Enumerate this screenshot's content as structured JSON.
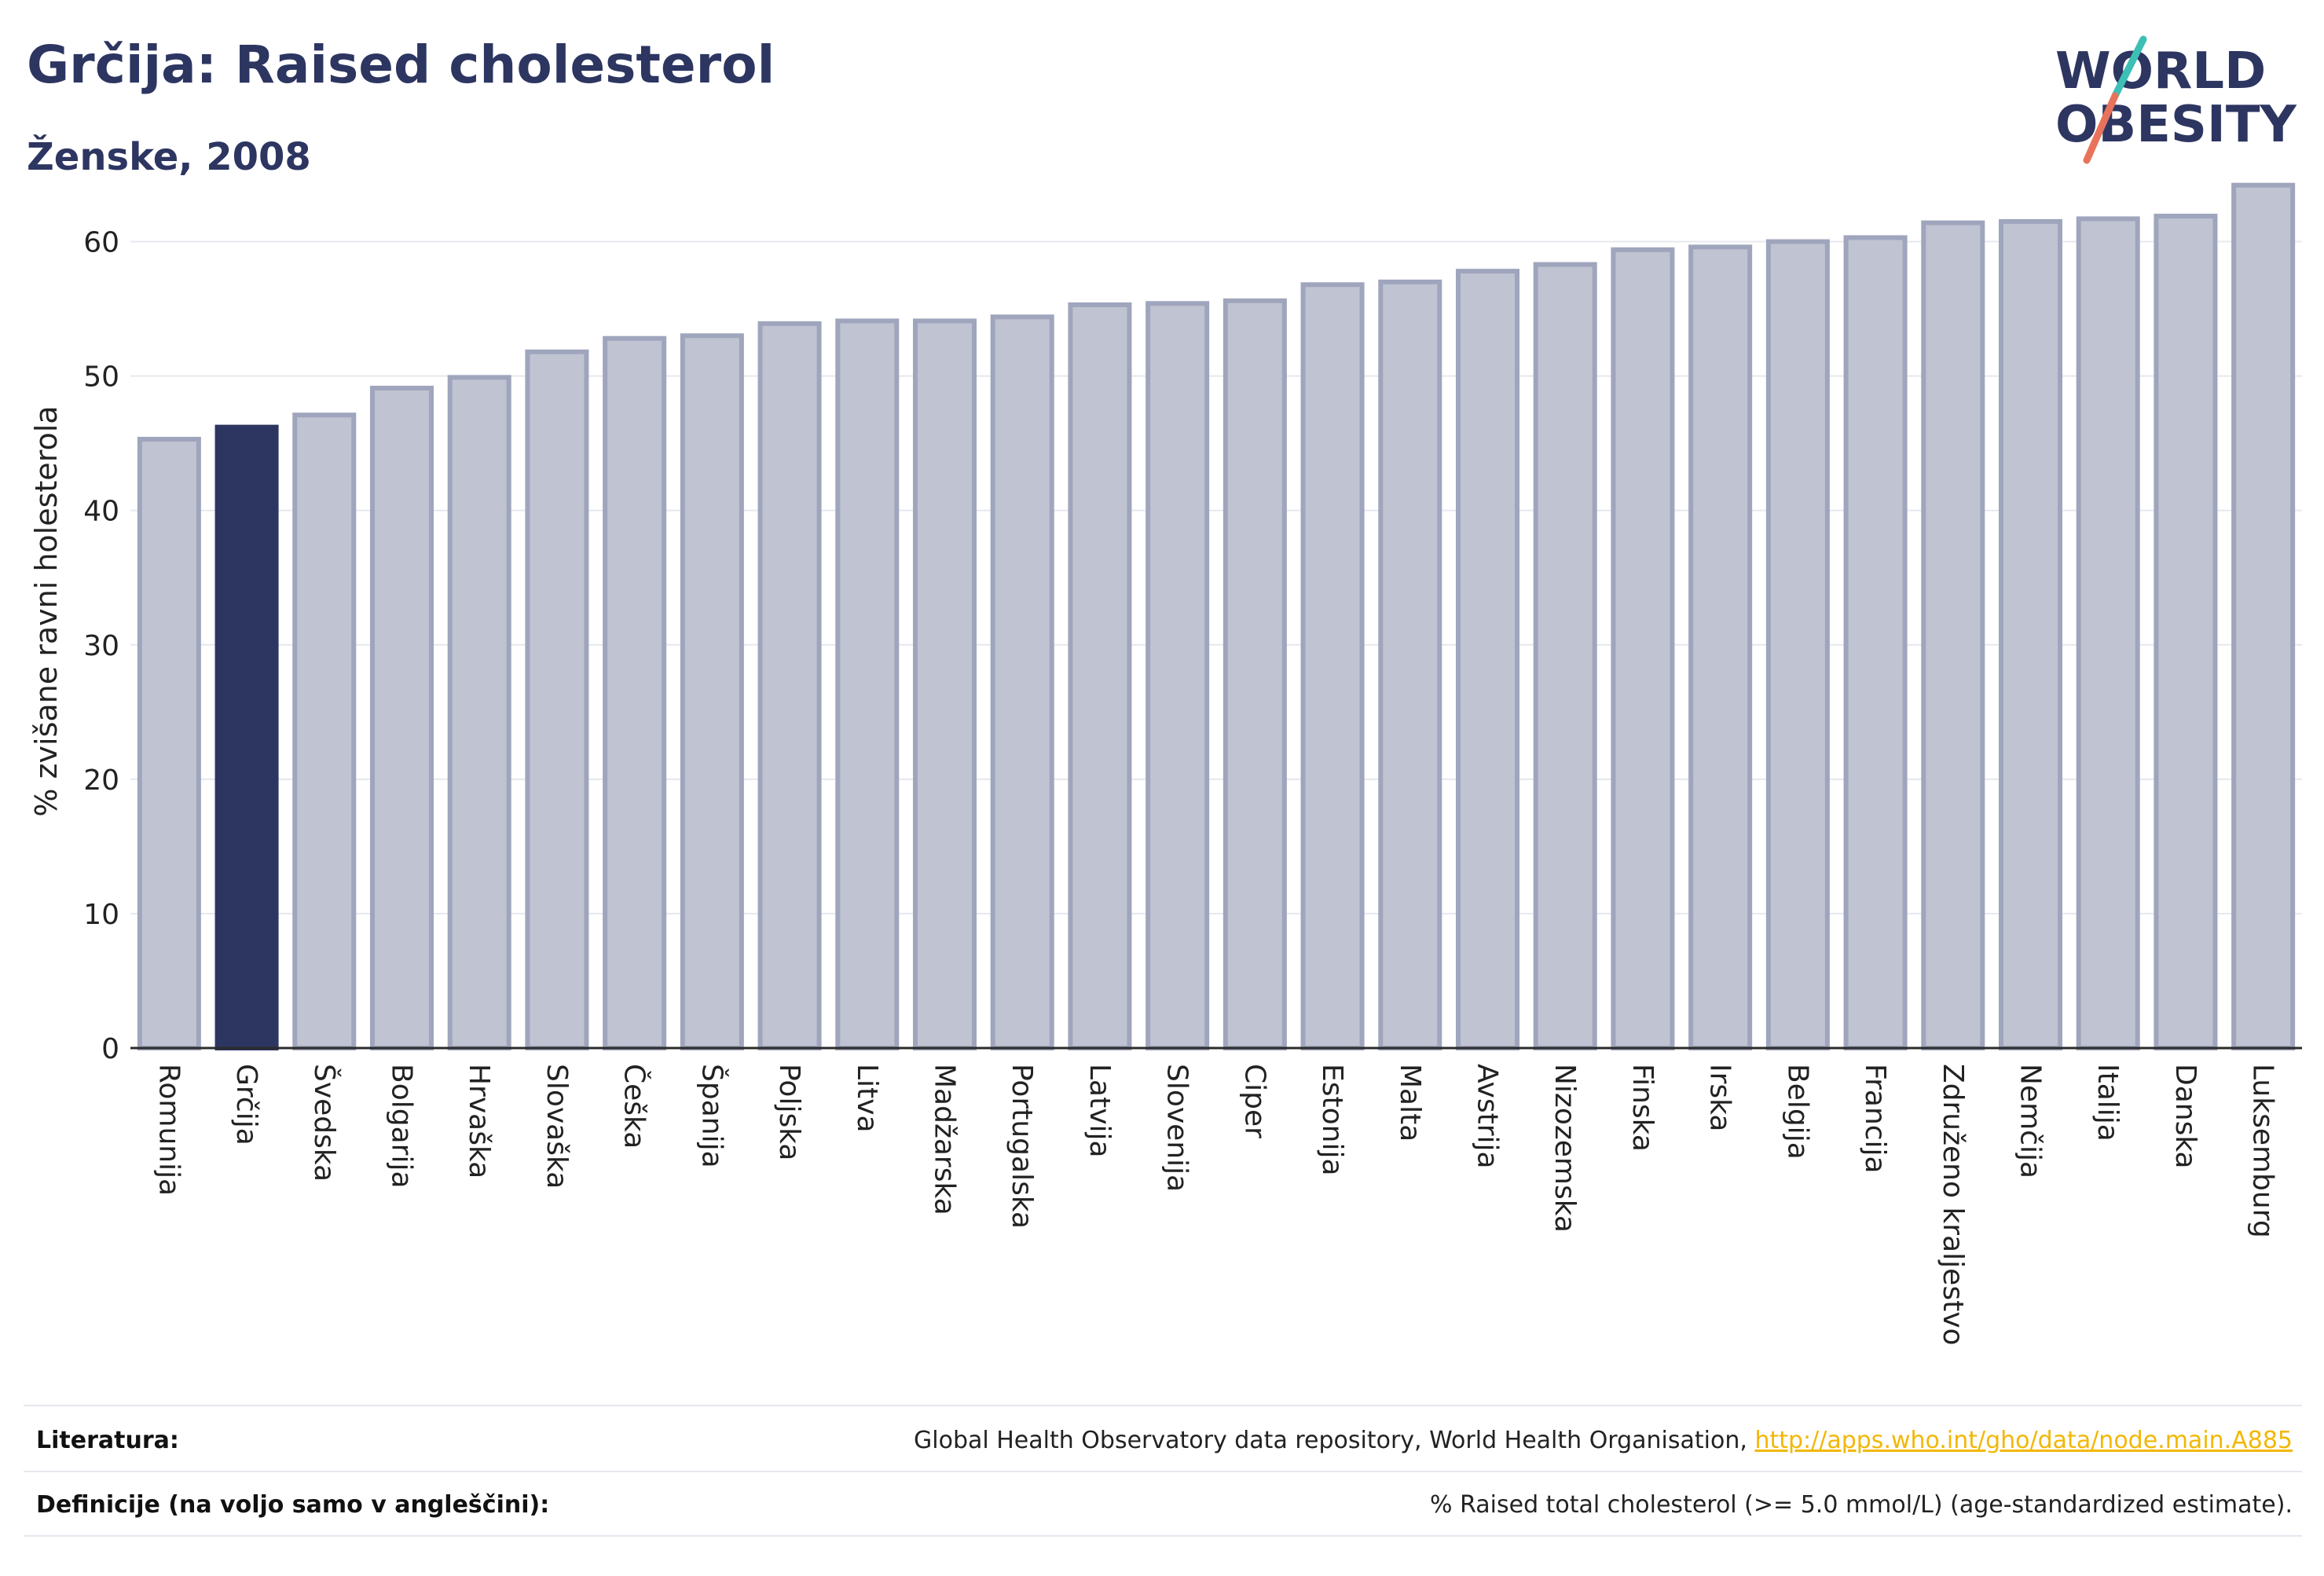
{
  "header": {
    "title": "Grčija: Raised cholesterol",
    "subtitle": "Ženske, 2008"
  },
  "logo": {
    "line1": "WORLD",
    "line2": "OBESITY"
  },
  "colors": {
    "highlight": "#2d3561",
    "bar_fill": "#c0c3d1",
    "bar_stroke": "#9fa5bc",
    "grid": "#e6e8ef",
    "logo_teal": "#3cbfb4",
    "logo_coral": "#e8735a",
    "link": "#f2b705"
  },
  "chart_data": {
    "type": "bar",
    "ylabel": "% zvišane ravni holesterola",
    "ylim": [
      0,
      65
    ],
    "yticks": [
      0,
      10,
      20,
      30,
      40,
      50,
      60
    ],
    "grid": true,
    "highlight": "Grčija",
    "categories": [
      "Romunija",
      "Grčija",
      "Švedska",
      "Bolgarija",
      "Hrvaška",
      "Slovaška",
      "Češka",
      "Španija",
      "Poljska",
      "Litva",
      "Madžarska",
      "Portugalska",
      "Latvija",
      "Slovenija",
      "Ciper",
      "Estonija",
      "Malta",
      "Avstrija",
      "Nizozemska",
      "Finska",
      "Irska",
      "Belgija",
      "Francija",
      "Združeno kraljestvo",
      "Nemčija",
      "Italija",
      "Danska",
      "Luksemburg"
    ],
    "values": [
      45.3,
      46.2,
      47.1,
      49.1,
      49.9,
      51.8,
      52.8,
      53.0,
      53.9,
      54.1,
      54.1,
      54.4,
      55.3,
      55.4,
      55.6,
      56.8,
      57.0,
      57.8,
      58.3,
      59.4,
      59.6,
      60.0,
      60.3,
      61.4,
      61.5,
      61.7,
      61.9,
      64.2
    ]
  },
  "footer": {
    "sources_label": "Literatura:",
    "sources_text": "Global Health Observatory data repository, World Health Organisation, ",
    "sources_link": "http://apps.who.int/gho/data/node.main.A885",
    "definitions_label": "Definicije (na voljo samo v angleščini):",
    "definitions_text": "% Raised total cholesterol (>= 5.0 mmol/L) (age-standardized estimate)."
  }
}
